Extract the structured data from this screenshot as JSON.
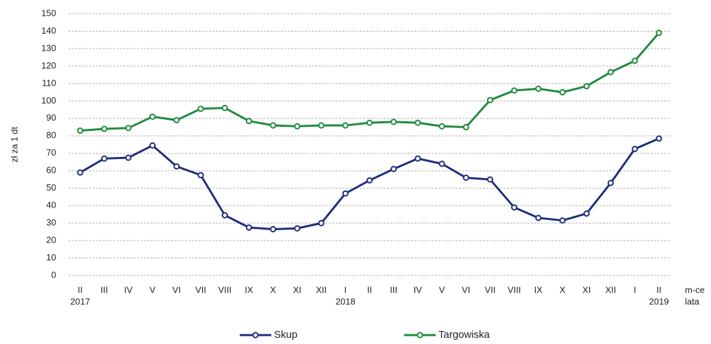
{
  "chart_data": {
    "type": "line",
    "y_label": "zł za 1 dt",
    "categories": [
      "II",
      "III",
      "IV",
      "V",
      "VI",
      "VII",
      "VIII",
      "IX",
      "X",
      "XI",
      "XII",
      "I",
      "II",
      "III",
      "IV",
      "V",
      "VI",
      "VII",
      "VIII",
      "IX",
      "X",
      "XI",
      "XII",
      "I",
      "II"
    ],
    "years": [
      "2017",
      null,
      null,
      null,
      null,
      null,
      null,
      null,
      null,
      null,
      null,
      "2018",
      null,
      null,
      null,
      null,
      null,
      null,
      null,
      null,
      null,
      null,
      null,
      null,
      "2019"
    ],
    "x_axis_label": "m-ce",
    "x_year_label": "lata",
    "series": [
      {
        "name": "Skup",
        "color": "#1f2d7a",
        "values": [
          59,
          67,
          67.5,
          74.5,
          62.5,
          57.5,
          34.5,
          27.5,
          26.5,
          27,
          30,
          47,
          54.5,
          61,
          67,
          64,
          56,
          55,
          39,
          33,
          31.5,
          35.5,
          53,
          72.5,
          78.5
        ]
      },
      {
        "name": "Targowiska",
        "color": "#1e8a3e",
        "values": [
          83,
          84,
          84.5,
          91,
          89,
          95.5,
          96,
          88.5,
          86,
          85.5,
          86,
          86,
          87.5,
          88,
          87.5,
          85.5,
          85,
          100.5,
          106,
          107,
          105,
          108.5,
          116.5,
          123,
          139
        ]
      }
    ],
    "ylim": [
      0,
      150
    ],
    "yticks": [
      0,
      10,
      20,
      30,
      40,
      50,
      60,
      70,
      80,
      90,
      100,
      110,
      120,
      130,
      140,
      150
    ],
    "grid": true
  }
}
